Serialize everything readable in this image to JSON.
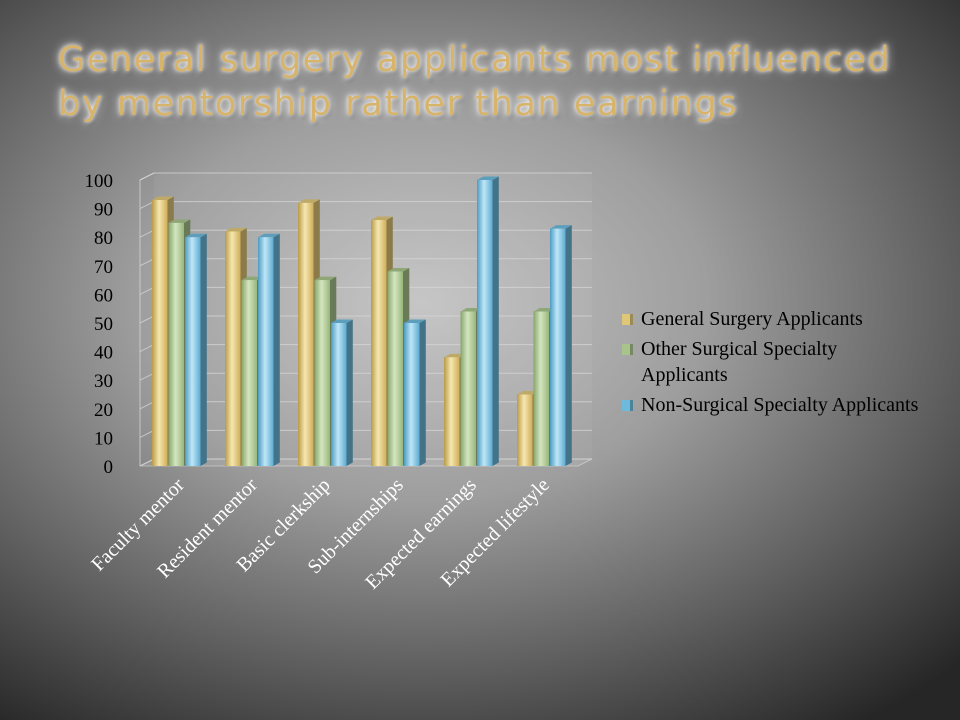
{
  "slide": {
    "title": "General surgery applicants most influenced by mentorship rather than earnings"
  },
  "chart_data": {
    "type": "bar",
    "title": "",
    "xlabel": "",
    "ylabel": "",
    "ylim": [
      0,
      100
    ],
    "yticks": [
      0,
      10,
      20,
      30,
      40,
      50,
      60,
      70,
      80,
      90,
      100
    ],
    "grid": true,
    "legend_position": "right",
    "style": "3d-clustered-column",
    "categories": [
      "Faculty mentor",
      "Resident mentor",
      "Basic clerkship",
      "Sub-internships",
      "Expected earnings",
      "Expected lifestyle"
    ],
    "series": [
      {
        "name": "General Surgery Applicants",
        "color": "#e0c778",
        "values": [
          93,
          82,
          92,
          86,
          38,
          25
        ]
      },
      {
        "name": "Other Surgical Specialty Applicants",
        "color": "#a8c48c",
        "values": [
          85,
          65,
          65,
          68,
          54,
          54
        ]
      },
      {
        "name": "Non-Surgical Specialty Applicants",
        "color": "#6cbadc",
        "values": [
          80,
          80,
          50,
          50,
          100,
          83
        ]
      }
    ]
  }
}
